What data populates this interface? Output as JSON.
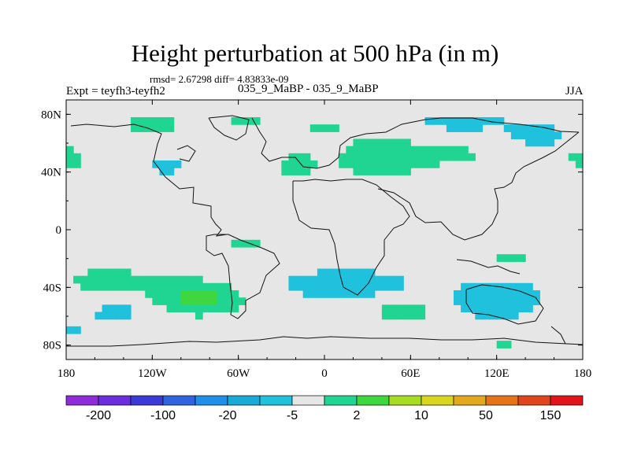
{
  "chart_data": {
    "type": "heatmap",
    "title": "Height perturbation at 500 hPa (in m)",
    "stats_text": "rmsd= 2.67298 diff= 4.83833e-09",
    "left_label": "Expt = teyfh3-teyfh2",
    "center_label": "035_9_MaBP - 035_9_MaBP",
    "right_label": "JJA",
    "x_range": [
      -180,
      180
    ],
    "y_range": [
      -90,
      90
    ],
    "x_ticks": [
      {
        "value": -180,
        "label": "180"
      },
      {
        "value": -120,
        "label": "120W"
      },
      {
        "value": -60,
        "label": "60W"
      },
      {
        "value": 0,
        "label": "0"
      },
      {
        "value": 60,
        "label": "60E"
      },
      {
        "value": 120,
        "label": "120E"
      },
      {
        "value": 180,
        "label": "180"
      }
    ],
    "y_ticks": [
      {
        "value": 80,
        "label": "80N"
      },
      {
        "value": 40,
        "label": "40N"
      },
      {
        "value": 0,
        "label": "0"
      },
      {
        "value": -40,
        "label": "40S"
      },
      {
        "value": -80,
        "label": "80S"
      }
    ],
    "colorbar": {
      "colors": [
        "#8f2cd9",
        "#6a2edc",
        "#3c3ad6",
        "#2f64de",
        "#1f8fe8",
        "#1aaad8",
        "#1fc1dc",
        "#e6e6e6",
        "#20d592",
        "#3fd73f",
        "#a6dc22",
        "#d8d61e",
        "#e4a81c",
        "#e37419",
        "#e0441a",
        "#e0141a"
      ],
      "labels": [
        {
          "boundary": 1,
          "text": "-200"
        },
        {
          "boundary": 3,
          "text": "-100"
        },
        {
          "boundary": 5,
          "text": "-20"
        },
        {
          "boundary": 7,
          "text": "-5"
        },
        {
          "boundary": 9,
          "text": "2"
        },
        {
          "boundary": 11,
          "text": "10"
        },
        {
          "boundary": 13,
          "text": "50"
        },
        {
          "boundary": 15,
          "text": "150"
        }
      ]
    },
    "anomaly_regions": [
      {
        "lon": -120,
        "lat": 73,
        "rlon": 28,
        "rlat": 6,
        "value": 3.5
      },
      {
        "lon": -55,
        "lat": 74,
        "rlon": 18,
        "rlat": 5,
        "value": 3
      },
      {
        "lon": 0,
        "lat": 72,
        "rlon": 22,
        "rlat": 6,
        "value": 2.5
      },
      {
        "lon": 40,
        "lat": 50,
        "rlon": 30,
        "rlat": 14,
        "value": 5
      },
      {
        "lon": 90,
        "lat": 52,
        "rlon": 22,
        "rlat": 8,
        "value": 3
      },
      {
        "lon": -175,
        "lat": 50,
        "rlon": 10,
        "rlat": 6,
        "value": 3
      },
      {
        "lon": 178,
        "lat": 50,
        "rlon": 8,
        "rlat": 6,
        "value": 3
      },
      {
        "lon": -20,
        "lat": 45,
        "rlon": 20,
        "rlat": 15,
        "value": 2.5
      },
      {
        "lon": -55,
        "lat": -10,
        "rlon": 20,
        "rlat": 8,
        "value": 2.5
      },
      {
        "lon": -150,
        "lat": -35,
        "rlon": 35,
        "rlat": 9,
        "value": 3.5
      },
      {
        "lon": -88,
        "lat": -47,
        "rlon": 32,
        "rlat": 12,
        "value": 6
      },
      {
        "lon": 55,
        "lat": -55,
        "rlon": 28,
        "rlat": 9,
        "value": 3.5
      },
      {
        "lon": 132,
        "lat": -77,
        "rlon": 28,
        "rlat": 6,
        "value": 3
      },
      {
        "lon": 130,
        "lat": -20,
        "rlon": 25,
        "rlat": 8,
        "value": 2.5
      },
      {
        "lon": 95,
        "lat": 75,
        "rlon": 45,
        "rlat": 8,
        "value": -3
      },
      {
        "lon": 150,
        "lat": 65,
        "rlon": 22,
        "rlat": 8,
        "value": -3.5
      },
      {
        "lon": -110,
        "lat": 45,
        "rlon": 14,
        "rlat": 8,
        "value": -3
      },
      {
        "lon": -145,
        "lat": -57,
        "rlon": 25,
        "rlat": 7,
        "value": -3
      },
      {
        "lon": 15,
        "lat": -38,
        "rlon": 50,
        "rlat": 12,
        "value": -4
      },
      {
        "lon": 120,
        "lat": -48,
        "rlon": 32,
        "rlat": 14,
        "value": -5
      },
      {
        "lon": -175,
        "lat": -70,
        "rlon": 10,
        "rlat": 5,
        "value": -2.5
      },
      {
        "lon": 140,
        "lat": -75,
        "rlon": 15,
        "rlat": 4,
        "value": -2.5
      }
    ]
  }
}
